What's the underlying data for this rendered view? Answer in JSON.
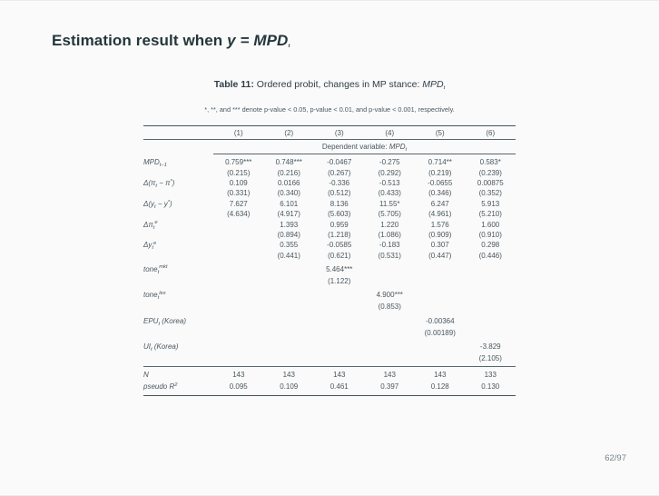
{
  "slide": {
    "title": {
      "text": "Estimation result when ",
      "math": "y = MPD_t"
    },
    "caption": {
      "label": "Table 11:",
      "text": " Ordered probit, changes in MP stance: ",
      "math": "MPD_t"
    },
    "note": "*, **, and *** denote p-value < 0.05, p-value < 0.01, and p-value < 0.001, respectively.",
    "page": "62/97"
  },
  "table": {
    "col_headers": [
      "(1)",
      "(2)",
      "(3)",
      "(4)",
      "(5)",
      "(6)"
    ],
    "dep_header": {
      "text": "Dependent variable: ",
      "math": "MPD_t"
    },
    "rows": [
      {
        "label": "MPD_{t−1}",
        "coef": [
          "0.759***",
          "0.748***",
          "-0.0467",
          "-0.275",
          "0.714**",
          "0.583*"
        ],
        "se": [
          "(0.215)",
          "(0.216)",
          "(0.267)",
          "(0.292)",
          "(0.219)",
          "(0.239)"
        ]
      },
      {
        "label": "Δ(π_t − π^*)",
        "coef": [
          "0.109",
          "0.0166",
          "-0.336",
          "-0.513",
          "-0.0655",
          "0.00875"
        ],
        "se": [
          "(0.331)",
          "(0.340)",
          "(0.512)",
          "(0.433)",
          "(0.346)",
          "(0.352)"
        ]
      },
      {
        "label": "Δ(y_t − y^*)",
        "coef": [
          "7.627",
          "6.101",
          "8.136",
          "11.55*",
          "6.247",
          "5.913"
        ],
        "se": [
          "(4.634)",
          "(4.917)",
          "(5.603)",
          "(5.705)",
          "(4.961)",
          "(5.210)"
        ]
      },
      {
        "label": "Δπ_t^e",
        "coef": [
          "",
          "1.393",
          "0.959",
          "1.220",
          "1.576",
          "1.600"
        ],
        "se": [
          "",
          "(0.894)",
          "(1.218)",
          "(1.086)",
          "(0.909)",
          "(0.910)"
        ]
      },
      {
        "label": "Δy_t^e",
        "coef": [
          "",
          "0.355",
          "-0.0585",
          "-0.183",
          "0.307",
          "0.298"
        ],
        "se": [
          "",
          "(0.441)",
          "(0.621)",
          "(0.531)",
          "(0.447)",
          "(0.446)"
        ]
      },
      {
        "label": "tone_t^{mkt}",
        "coef": [
          "",
          "",
          "5.464***",
          "",
          "",
          ""
        ],
        "se": [
          "",
          "",
          "(1.122)",
          "",
          "",
          ""
        ]
      },
      {
        "label": "tone_t^{lex}",
        "coef": [
          "",
          "",
          "",
          "4.900***",
          "",
          ""
        ],
        "se": [
          "",
          "",
          "",
          "(0.853)",
          "",
          ""
        ]
      },
      {
        "label": "EPU_t (Korea)",
        "coef": [
          "",
          "",
          "",
          "",
          "-0.00364",
          ""
        ],
        "se": [
          "",
          "",
          "",
          "",
          "(0.00189)",
          ""
        ]
      },
      {
        "label": "UI_t (Korea)",
        "coef": [
          "",
          "",
          "",
          "",
          "",
          "-3.829"
        ],
        "se": [
          "",
          "",
          "",
          "",
          "",
          "(2.105)"
        ]
      }
    ],
    "stats": [
      {
        "label": "N",
        "values": [
          "143",
          "143",
          "143",
          "143",
          "143",
          "133"
        ]
      },
      {
        "label": "pseudo R^2",
        "values": [
          "0.095",
          "0.109",
          "0.461",
          "0.397",
          "0.128",
          "0.130"
        ]
      }
    ]
  },
  "colors": {
    "background": "#fafafa",
    "title": "#23373b",
    "body_text": "#49575f",
    "rule": "#44545c",
    "page_number": "#75828a"
  }
}
